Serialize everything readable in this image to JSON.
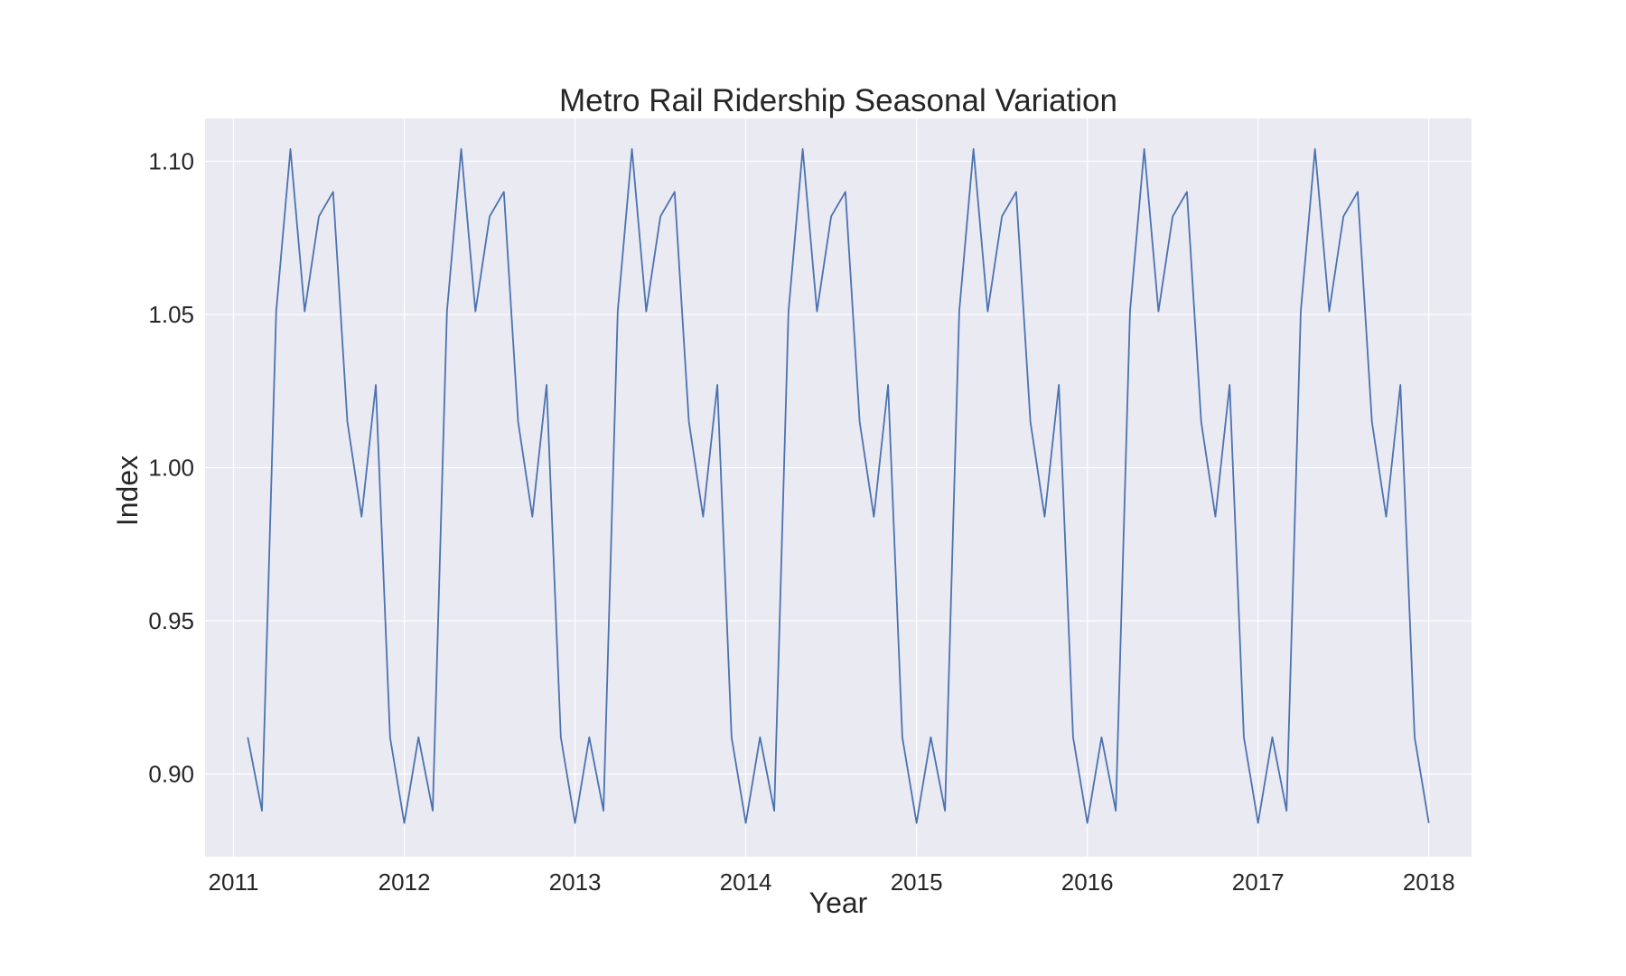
{
  "chart_data": {
    "type": "line",
    "title": "Metro Rail Ridership Seasonal Variation",
    "xlabel": "Year",
    "ylabel": "Index",
    "x_tick_labels": [
      "2011",
      "2012",
      "2013",
      "2014",
      "2015",
      "2016",
      "2017",
      "2018"
    ],
    "y_tick_labels": [
      "0.90",
      "0.95",
      "1.00",
      "1.05",
      "1.10"
    ],
    "y_ticks": [
      0.9,
      0.95,
      1.0,
      1.05,
      1.1
    ],
    "xlim": [
      "2010-11",
      "2018-04"
    ],
    "ylim": [
      0.873,
      1.114
    ],
    "grid": true,
    "legend": "none",
    "colors": {
      "series": "#4c72b0",
      "plot_background": "#eaeaf2",
      "grid": "#ffffff"
    },
    "series": [
      {
        "start_month": "2011-02",
        "end_month": "2018-01",
        "frequency": "monthly",
        "seasonal_pattern_by_month": {
          "Jan": 0.884,
          "Feb": 0.912,
          "Mar": 0.888,
          "Apr": 1.051,
          "May": 1.104,
          "Jun": 1.051,
          "Jul": 1.082,
          "Aug": 1.09,
          "Sep": 1.015,
          "Oct": 0.984,
          "Nov": 1.027,
          "Dec": 0.912
        }
      }
    ]
  }
}
